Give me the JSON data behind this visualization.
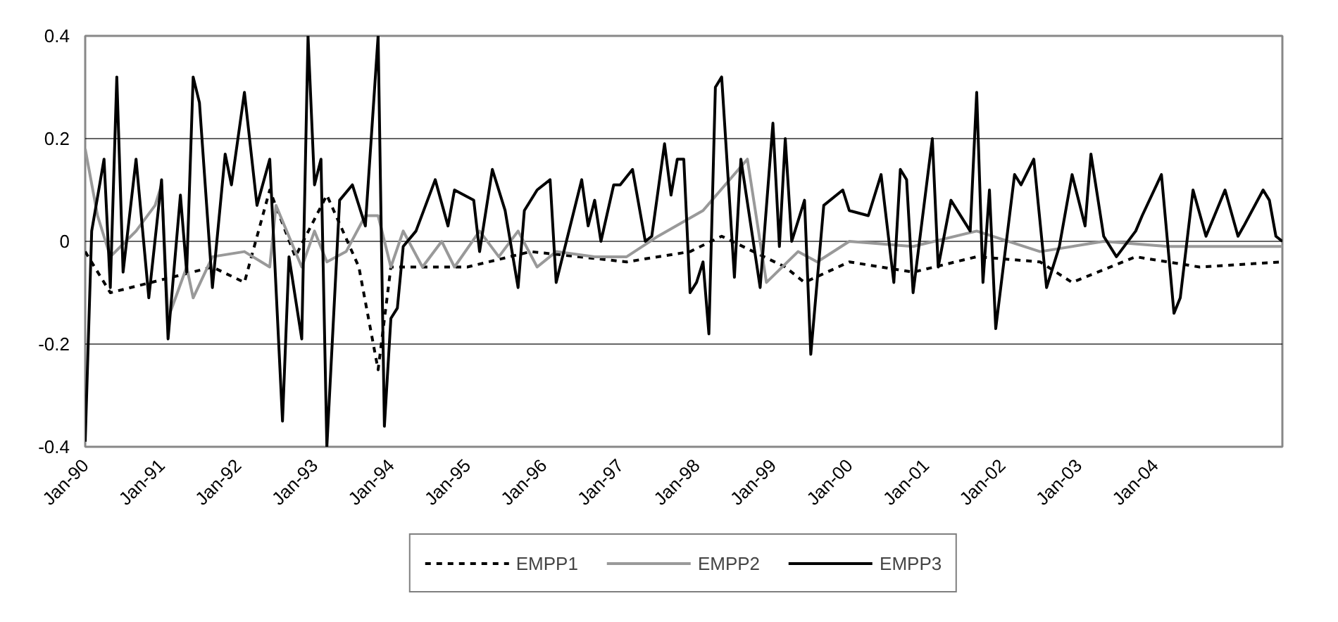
{
  "chart_data": {
    "type": "line",
    "xlim": [
      "1990-01",
      "2005-09"
    ],
    "ylim": [
      -0.4,
      0.4
    ],
    "yticks": [
      {
        "value": -0.4,
        "label": "-0.4"
      },
      {
        "value": -0.2,
        "label": "-0.2"
      },
      0,
      {
        "value": 0.2,
        "label": "0.2"
      },
      {
        "value": 0.4,
        "label": "0.4"
      }
    ],
    "xticks": [
      {
        "value": "1990-01",
        "label": "Jan-90"
      },
      {
        "value": "1991-01",
        "label": "Jan-91"
      },
      {
        "value": "1992-01",
        "label": "Jan-92"
      },
      {
        "value": "1993-01",
        "label": "Jan-93"
      },
      {
        "value": "1994-01",
        "label": "Jan-94"
      },
      {
        "value": "1995-01",
        "label": "Jan-95"
      },
      {
        "value": "1996-01",
        "label": "Jan-96"
      },
      {
        "value": "1997-01",
        "label": "Jan-97"
      },
      {
        "value": "1998-01",
        "label": "Jan-98"
      },
      {
        "value": "1999-01",
        "label": "Jan-99"
      },
      {
        "value": "2000-01",
        "label": "Jan-00"
      },
      {
        "value": "2001-01",
        "label": "Jan-01"
      },
      {
        "value": "2002-01",
        "label": "Jan-02"
      },
      {
        "value": "2003-01",
        "label": "Jan-03"
      },
      {
        "value": "2004-01",
        "label": "Jan-04"
      }
    ],
    "grid": "y",
    "legend": "bottom",
    "series": [
      {
        "name": "EMPP1",
        "color": "#000000",
        "line_style": "dashed",
        "x": [
          "1990-01",
          "1990-05",
          "1991-09",
          "1992-02",
          "1992-06",
          "1992-10",
          "1993-03",
          "1993-08",
          "1993-11",
          "1994-01",
          "1995-01",
          "1995-11",
          "1997-02",
          "1997-12",
          "1998-05",
          "1999-03",
          "1999-06",
          "2000-01",
          "2000-11",
          "2001-09",
          "2002-07",
          "2002-12",
          "2003-10",
          "2004-08",
          "2005-09"
        ],
        "values": [
          -0.02,
          -0.1,
          -0.05,
          -0.08,
          0.1,
          -0.03,
          0.09,
          -0.05,
          -0.25,
          -0.05,
          -0.05,
          -0.02,
          -0.04,
          -0.02,
          0.01,
          -0.05,
          -0.08,
          -0.04,
          -0.06,
          -0.03,
          -0.04,
          -0.08,
          -0.03,
          -0.05,
          -0.04
        ]
      },
      {
        "name": "EMPP2",
        "color": "#999999",
        "line_style": "solid",
        "x": [
          "1990-01",
          "1990-03",
          "1990-05",
          "1990-09",
          "1990-12",
          "1991-01",
          "1991-02",
          "1991-05",
          "1991-06",
          "1991-09",
          "1992-02",
          "1992-06",
          "1992-07",
          "1992-11",
          "1993-01",
          "1993-03",
          "1993-06",
          "1993-09",
          "1993-11",
          "1994-01",
          "1994-03",
          "1994-06",
          "1994-09",
          "1994-11",
          "1995-03",
          "1995-06",
          "1995-09",
          "1995-12",
          "1996-03",
          "1996-09",
          "1997-02",
          "1997-07",
          "1998-02",
          "1998-09",
          "1998-12",
          "1999-05",
          "1999-08",
          "2000-01",
          "2000-11",
          "2001-09",
          "2002-07",
          "2003-05",
          "2004-03",
          "2005-01",
          "2005-09"
        ],
        "values": [
          0.18,
          0.05,
          -0.03,
          0.02,
          0.07,
          0.11,
          -0.15,
          -0.05,
          -0.11,
          -0.03,
          -0.02,
          -0.05,
          0.07,
          -0.05,
          0.02,
          -0.04,
          -0.02,
          0.05,
          0.05,
          -0.05,
          0.02,
          -0.05,
          0,
          -0.05,
          0.02,
          -0.03,
          0.02,
          -0.05,
          -0.02,
          -0.03,
          -0.03,
          0.01,
          0.06,
          0.16,
          -0.08,
          -0.02,
          -0.04,
          0,
          -0.01,
          0.02,
          -0.02,
          0,
          -0.01,
          -0.01,
          -0.01
        ]
      },
      {
        "name": "EMPP3",
        "color": "#000000",
        "line_style": "solid",
        "x": [
          "1990-01",
          "1990-02",
          "1990-04",
          "1990-05",
          "1990-06",
          "1990-07",
          "1990-09",
          "1990-11",
          "1991-01",
          "1991-02",
          "1991-04",
          "1991-05",
          "1991-06",
          "1991-07",
          "1991-09",
          "1991-11",
          "1991-12",
          "1992-02",
          "1992-04",
          "1992-06",
          "1992-08",
          "1992-09",
          "1992-11",
          "1992-12",
          "1993-01",
          "1993-02",
          "1993-03",
          "1993-05",
          "1993-07",
          "1993-09",
          "1993-11",
          "1993-12",
          "1994-01",
          "1994-02",
          "1994-03",
          "1994-05",
          "1994-08",
          "1994-10",
          "1994-11",
          "1995-02",
          "1995-03",
          "1995-05",
          "1995-07",
          "1995-09",
          "1995-10",
          "1995-12",
          "1996-02",
          "1996-03",
          "1996-05",
          "1996-07",
          "1996-08",
          "1996-09",
          "1996-10",
          "1996-12",
          "1997-01",
          "1997-03",
          "1997-05",
          "1997-06",
          "1997-08",
          "1997-09",
          "1997-10",
          "1997-11",
          "1997-12",
          "1998-01",
          "1998-02",
          "1998-03",
          "1998-04",
          "1998-05",
          "1998-07",
          "1998-08",
          "1998-11",
          "1999-01",
          "1999-02",
          "1999-03",
          "1999-04",
          "1999-06",
          "1999-07",
          "1999-09",
          "1999-12",
          "2000-01",
          "2000-04",
          "2000-06",
          "2000-08",
          "2000-09",
          "2000-10",
          "2000-11",
          "2001-02",
          "2001-03",
          "2001-05",
          "2001-08",
          "2001-09",
          "2001-10",
          "2001-11",
          "2001-12",
          "2002-03",
          "2002-04",
          "2002-06",
          "2002-08",
          "2002-10",
          "2002-12",
          "2003-02",
          "2003-03",
          "2003-05",
          "2003-07",
          "2003-10",
          "2003-11",
          "2004-02",
          "2004-04",
          "2004-05",
          "2004-07",
          "2004-09",
          "2004-12",
          "2005-02",
          "2005-03",
          "2005-06",
          "2005-07",
          "2005-08",
          "2005-09"
        ],
        "values": [
          -0.39,
          0.02,
          0.16,
          -0.09,
          0.32,
          -0.06,
          0.16,
          -0.11,
          0.12,
          -0.19,
          0.09,
          -0.06,
          0.32,
          0.27,
          -0.09,
          0.17,
          0.11,
          0.29,
          0.07,
          0.16,
          -0.35,
          -0.03,
          -0.19,
          0.4,
          0.11,
          0.16,
          -0.4,
          0.08,
          0.11,
          0.03,
          0.4,
          -0.36,
          -0.15,
          -0.13,
          -0.01,
          0.02,
          0.12,
          0.03,
          0.1,
          0.08,
          -0.02,
          0.14,
          0.06,
          -0.09,
          0.06,
          0.1,
          0.12,
          -0.08,
          0.02,
          0.12,
          0.03,
          0.08,
          0.0,
          0.11,
          0.11,
          0.14,
          0.0,
          0.01,
          0.19,
          0.09,
          0.16,
          0.16,
          -0.1,
          -0.08,
          -0.04,
          -0.18,
          0.3,
          0.32,
          -0.07,
          0.16,
          -0.09,
          0.23,
          -0.01,
          0.2,
          0.0,
          0.08,
          -0.22,
          0.07,
          0.1,
          0.06,
          0.05,
          0.13,
          -0.08,
          0.14,
          0.12,
          -0.1,
          0.2,
          -0.05,
          0.08,
          0.02,
          0.29,
          -0.08,
          0.1,
          -0.17,
          0.13,
          0.11,
          0.16,
          -0.09,
          -0.01,
          0.13,
          0.03,
          0.17,
          0.01,
          -0.03,
          0.02,
          0.05,
          0.13,
          -0.14,
          -0.11,
          0.1,
          0.01,
          0.1,
          0.01,
          0.03,
          0.1,
          0.08,
          0.01,
          0.0
        ]
      }
    ]
  }
}
